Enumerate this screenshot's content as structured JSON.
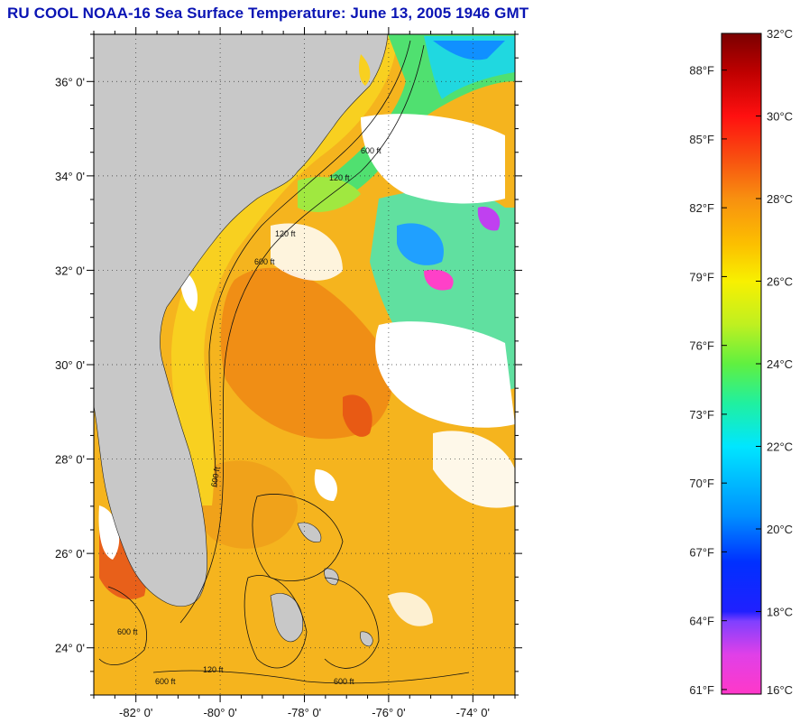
{
  "title": "RU COOL  NOAA-16  Sea Surface Temperature:  June 13, 2005 1946 GMT",
  "map": {
    "lat_ticks": [
      {
        "deg": 36,
        "label": "36° 0'"
      },
      {
        "deg": 34,
        "label": "34° 0'"
      },
      {
        "deg": 32,
        "label": "32° 0'"
      },
      {
        "deg": 30,
        "label": "30° 0'"
      },
      {
        "deg": 28,
        "label": "28° 0'"
      },
      {
        "deg": 26,
        "label": "26° 0'"
      },
      {
        "deg": 24,
        "label": "24° 0'"
      }
    ],
    "lon_ticks": [
      {
        "deg": -82,
        "label": "-82° 0'"
      },
      {
        "deg": -80,
        "label": "-80° 0'"
      },
      {
        "deg": -78,
        "label": "-78° 0'"
      },
      {
        "deg": -76,
        "label": "-76° 0'"
      },
      {
        "deg": -74,
        "label": "-74° 0'"
      }
    ],
    "lat_range": [
      23,
      37
    ],
    "lon_range": [
      -83,
      -73
    ],
    "contour_labels": [
      "120 ft",
      "600 ft",
      "120 ft",
      "600 ft",
      "600 ft",
      "600 ft",
      "600 ft",
      "600 ft",
      "120 ft"
    ],
    "colors": {
      "land": "#c8c8c8",
      "cloud": "#ffffff",
      "gulf_stream": "#f08a14",
      "shelf": "#f5c81e"
    }
  },
  "colorbar": {
    "celsius": [
      {
        "value": 32,
        "label": "32°C"
      },
      {
        "value": 30,
        "label": "30°C"
      },
      {
        "value": 28,
        "label": "28°C"
      },
      {
        "value": 26,
        "label": "26°C"
      },
      {
        "value": 24,
        "label": "24°C"
      },
      {
        "value": 22,
        "label": "22°C"
      },
      {
        "value": 20,
        "label": "20°C"
      },
      {
        "value": 18,
        "label": "18°C"
      },
      {
        "value": 16,
        "label": "16°C"
      }
    ],
    "fahrenheit": [
      {
        "value": 88,
        "label": "88°F"
      },
      {
        "value": 85,
        "label": "85°F"
      },
      {
        "value": 82,
        "label": "82°F"
      },
      {
        "value": 79,
        "label": "79°F"
      },
      {
        "value": 76,
        "label": "76°F"
      },
      {
        "value": 73,
        "label": "73°F"
      },
      {
        "value": 70,
        "label": "70°F"
      },
      {
        "value": 67,
        "label": "67°F"
      },
      {
        "value": 64,
        "label": "64°F"
      },
      {
        "value": 61,
        "label": "61°F"
      }
    ],
    "range_c": [
      16,
      32
    ]
  }
}
